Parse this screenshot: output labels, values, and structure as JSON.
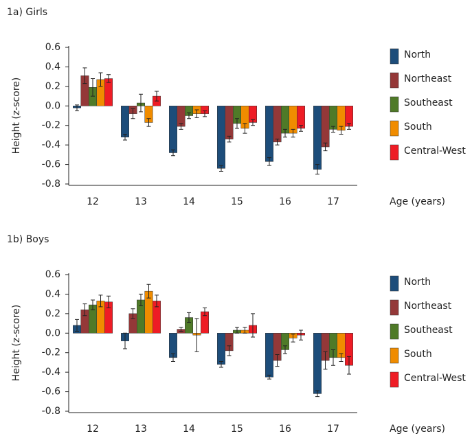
{
  "chart_data": [
    {
      "type": "bar",
      "title": "1a) Girls",
      "y_label": "Height (z-score)",
      "x_label": "Age (years)",
      "categories": [
        "12",
        "13",
        "14",
        "15",
        "16",
        "17"
      ],
      "ylim": [
        -0.8,
        0.6
      ],
      "yticks": [
        0.6,
        0.4,
        0.2,
        {
          "value": 0,
          "label": "0.0"
        },
        -0.2,
        -0.4,
        -0.6,
        -0.8
      ],
      "legend": "right",
      "grid": false,
      "series": [
        {
          "name": "North",
          "color": "#1d4d7a",
          "values": [
            -0.02,
            -0.32,
            -0.48,
            -0.64,
            -0.57,
            -0.65
          ],
          "errors": [
            0.03,
            0.03,
            0.03,
            0.03,
            0.04,
            0.05
          ]
        },
        {
          "name": "Northeast",
          "color": "#943838",
          "values": [
            0.31,
            -0.08,
            -0.21,
            -0.34,
            -0.37,
            -0.42
          ],
          "errors": [
            0.08,
            0.05,
            0.03,
            0.03,
            0.03,
            0.04
          ]
        },
        {
          "name": "Southeast",
          "color": "#4f7a28",
          "values": [
            0.19,
            0.03,
            -0.1,
            -0.18,
            -0.28,
            -0.24
          ],
          "errors": [
            0.09,
            0.09,
            0.03,
            0.05,
            0.04,
            0.03
          ]
        },
        {
          "name": "South",
          "color": "#f08c00",
          "values": [
            0.27,
            -0.17,
            -0.08,
            -0.23,
            -0.28,
            -0.25
          ],
          "errors": [
            0.07,
            0.04,
            0.04,
            0.05,
            0.04,
            0.04
          ]
        },
        {
          "name": "Central-West",
          "color": "#ee1c25",
          "values": [
            0.28,
            0.1,
            -0.08,
            -0.17,
            -0.23,
            -0.21
          ],
          "errors": [
            0.04,
            0.05,
            0.03,
            0.03,
            0.03,
            0.03
          ]
        }
      ]
    },
    {
      "type": "bar",
      "title": "1b) Boys",
      "y_label": "Height (z-score)",
      "x_label": "Age (years)",
      "categories": [
        "12",
        "13",
        "14",
        "15",
        "16",
        "17"
      ],
      "ylim": [
        -0.8,
        0.6
      ],
      "yticks": [
        0.6,
        0.4,
        0.2,
        {
          "value": 0,
          "label": "0.0"
        },
        -0.2,
        -0.4,
        -0.6,
        -0.8
      ],
      "legend": "right",
      "grid": false,
      "series": [
        {
          "name": "North",
          "color": "#1d4d7a",
          "values": [
            0.08,
            -0.08,
            -0.25,
            -0.32,
            -0.45,
            -0.62
          ],
          "errors": [
            0.06,
            0.08,
            0.04,
            0.03,
            0.02,
            0.03
          ]
        },
        {
          "name": "Northeast",
          "color": "#943838",
          "values": [
            0.24,
            0.2,
            0.04,
            -0.18,
            -0.28,
            -0.28
          ],
          "errors": [
            0.06,
            0.05,
            0.02,
            0.05,
            0.06,
            0.09
          ]
        },
        {
          "name": "Southeast",
          "color": "#4f7a28",
          "values": [
            0.29,
            0.34,
            0.16,
            0.03,
            -0.17,
            -0.25
          ],
          "errors": [
            0.05,
            0.06,
            0.05,
            0.03,
            0.04,
            0.08
          ]
        },
        {
          "name": "South",
          "color": "#f08c00",
          "values": [
            0.33,
            0.43,
            -0.02,
            0.03,
            -0.05,
            -0.25
          ],
          "errors": [
            0.06,
            0.07,
            0.17,
            0.03,
            0.04,
            0.04
          ]
        },
        {
          "name": "Central-West",
          "color": "#ee1c25",
          "values": [
            0.32,
            0.33,
            0.22,
            0.08,
            -0.02,
            -0.33
          ],
          "errors": [
            0.06,
            0.06,
            0.04,
            0.12,
            0.05,
            0.09
          ]
        }
      ]
    }
  ]
}
